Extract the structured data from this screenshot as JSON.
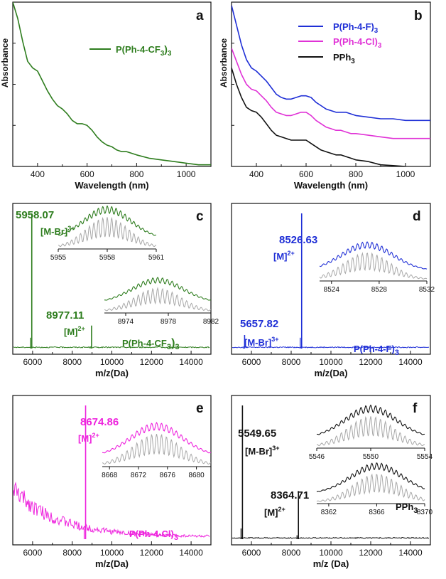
{
  "chart_data": [
    {
      "panel": "a",
      "type": "line",
      "xlabel": "Wavelength (nm)",
      "ylabel": "Absorbance",
      "xlim": [
        300,
        1100
      ],
      "xticks": [
        400,
        600,
        800,
        1000
      ],
      "ylim": [
        0,
        1.0
      ],
      "legend_position": "top-right",
      "series": [
        {
          "name": "P(Ph-4-CF3)3",
          "legend_parts": [
            "P(Ph-4-CF",
            "3",
            ")",
            "3"
          ],
          "color": "#2e7d1e",
          "x": [
            300,
            320,
            340,
            360,
            380,
            400,
            420,
            440,
            460,
            480,
            500,
            520,
            540,
            560,
            580,
            600,
            620,
            640,
            660,
            680,
            700,
            720,
            740,
            760,
            780,
            800,
            850,
            900,
            950,
            1000,
            1050,
            1100
          ],
          "y": [
            1.0,
            0.9,
            0.76,
            0.64,
            0.6,
            0.58,
            0.52,
            0.46,
            0.41,
            0.37,
            0.35,
            0.32,
            0.28,
            0.26,
            0.26,
            0.25,
            0.22,
            0.18,
            0.15,
            0.13,
            0.12,
            0.1,
            0.09,
            0.09,
            0.08,
            0.07,
            0.05,
            0.04,
            0.03,
            0.02,
            0.01,
            0.01
          ]
        }
      ]
    },
    {
      "panel": "b",
      "type": "line",
      "xlabel": "Wavelength (nm)",
      "ylabel": "Absorbance",
      "xlim": [
        300,
        1100
      ],
      "xticks": [
        400,
        600,
        800,
        1000
      ],
      "ylim": [
        0,
        1.0
      ],
      "legend_position": "top-right",
      "series": [
        {
          "name": "P(Ph-4-F)3",
          "legend_parts": [
            "P(Ph-4-F)",
            "3",
            "",
            ""
          ],
          "color": "#1f2fd6",
          "x": [
            300,
            320,
            340,
            360,
            380,
            400,
            420,
            440,
            460,
            480,
            500,
            520,
            540,
            560,
            580,
            600,
            620,
            640,
            660,
            680,
            700,
            720,
            740,
            760,
            780,
            800,
            850,
            900,
            950,
            1000,
            1050,
            1100
          ],
          "y": [
            0.98,
            0.86,
            0.74,
            0.65,
            0.6,
            0.58,
            0.55,
            0.52,
            0.48,
            0.44,
            0.42,
            0.41,
            0.41,
            0.42,
            0.43,
            0.43,
            0.42,
            0.39,
            0.37,
            0.35,
            0.34,
            0.33,
            0.33,
            0.33,
            0.32,
            0.31,
            0.3,
            0.29,
            0.29,
            0.28,
            0.28,
            0.28
          ]
        },
        {
          "name": "P(Ph-4-Cl)3",
          "legend_parts": [
            "P(Ph-4-Cl)",
            "3",
            "",
            ""
          ],
          "color": "#e032d6",
          "x": [
            300,
            320,
            340,
            360,
            380,
            400,
            420,
            440,
            460,
            480,
            500,
            520,
            540,
            560,
            580,
            600,
            620,
            640,
            660,
            680,
            700,
            720,
            740,
            760,
            780,
            800,
            850,
            900,
            950,
            1000,
            1050,
            1100
          ],
          "y": [
            0.72,
            0.64,
            0.56,
            0.5,
            0.47,
            0.46,
            0.43,
            0.4,
            0.36,
            0.33,
            0.32,
            0.31,
            0.31,
            0.32,
            0.33,
            0.33,
            0.31,
            0.28,
            0.26,
            0.24,
            0.23,
            0.22,
            0.22,
            0.21,
            0.2,
            0.2,
            0.19,
            0.18,
            0.17,
            0.17,
            0.17,
            0.17
          ]
        },
        {
          "name": "PPh3",
          "legend_parts": [
            "PPh",
            "3",
            "",
            ""
          ],
          "color": "#111111",
          "x": [
            300,
            320,
            340,
            360,
            380,
            400,
            420,
            440,
            460,
            480,
            500,
            520,
            540,
            560,
            580,
            600,
            620,
            640,
            660,
            680,
            700,
            720,
            740,
            760,
            780,
            800,
            850,
            900,
            950,
            1000
          ],
          "y": [
            0.6,
            0.5,
            0.42,
            0.36,
            0.34,
            0.33,
            0.3,
            0.26,
            0.22,
            0.19,
            0.18,
            0.17,
            0.16,
            0.16,
            0.16,
            0.16,
            0.14,
            0.12,
            0.1,
            0.09,
            0.08,
            0.07,
            0.07,
            0.06,
            0.05,
            0.04,
            0.03,
            0.01,
            0.005,
            0.0
          ]
        }
      ]
    },
    {
      "panel": "c",
      "type": "line",
      "xlabel": "m/z(Da)",
      "xlim": [
        5000,
        15000
      ],
      "xticks": [
        6000,
        8000,
        10000,
        12000,
        14000
      ],
      "color": "#2e7d1e",
      "compound_parts": [
        "P(Ph-4-CF",
        "3",
        ")",
        "3"
      ],
      "peaks": [
        {
          "mz": 5958.07,
          "rel": 1.0,
          "label": "5958.07",
          "ion_base": "[M-Br]",
          "charge": "3+"
        },
        {
          "mz": 8977.11,
          "rel": 0.17,
          "label": "8977.11",
          "ion_base": "[M]",
          "charge": "2+"
        }
      ],
      "insets": [
        {
          "center": 5958,
          "xlim": [
            5955,
            5961
          ],
          "ticks": [
            5955,
            5958,
            5961
          ],
          "position": "top"
        },
        {
          "center": 8977,
          "xlim": [
            8972,
            8982
          ],
          "ticks": [
            8974,
            8978,
            8982
          ],
          "position": "bottom"
        }
      ]
    },
    {
      "panel": "d",
      "type": "line",
      "xlabel": "m/z(Da)",
      "xlim": [
        5000,
        15000
      ],
      "xticks": [
        6000,
        8000,
        10000,
        12000,
        14000
      ],
      "color": "#1f2fd6",
      "compound_parts": [
        "P(Ph-4-F)",
        "3",
        "",
        ""
      ],
      "peaks": [
        {
          "mz": 8526.63,
          "rel": 1.0,
          "label": "8526.63",
          "ion_base": "[M]",
          "charge": "2+"
        },
        {
          "mz": 5657.82,
          "rel": 0.1,
          "label": "5657.82",
          "ion_base": "[M-Br]",
          "charge": "3+"
        }
      ],
      "insets": [
        {
          "center": 8527,
          "xlim": [
            8523,
            8532
          ],
          "ticks": [
            8524,
            8528,
            8532
          ],
          "position": "right"
        }
      ]
    },
    {
      "panel": "e",
      "type": "line",
      "xlabel": "m/z(Da)",
      "xlim": [
        5000,
        15000
      ],
      "xticks": [
        6000,
        8000,
        10000,
        12000,
        14000
      ],
      "color": "#ee22dd",
      "compound_parts": [
        "P(Ph-4-Cl)",
        "3",
        "",
        ""
      ],
      "peaks": [
        {
          "mz": 8674.86,
          "rel": 1.0,
          "label": "8674.86",
          "ion_base": "[M]",
          "charge": "2+"
        }
      ],
      "insets": [
        {
          "center": 8674.5,
          "xlim": [
            8667,
            8682
          ],
          "ticks": [
            8668,
            8672,
            8676,
            8680
          ],
          "position": "right"
        }
      ]
    },
    {
      "panel": "f",
      "type": "line",
      "xlabel": "m/z (Da)",
      "xlim": [
        5000,
        15000
      ],
      "xticks": [
        6000,
        8000,
        10000,
        12000,
        14000
      ],
      "color": "#111111",
      "compound_parts": [
        "PPh",
        "3",
        "",
        ""
      ],
      "peaks": [
        {
          "mz": 5549.65,
          "rel": 1.0,
          "label": "5549.65",
          "ion_base": "[M-Br]",
          "charge": "3+"
        },
        {
          "mz": 8364.71,
          "rel": 0.36,
          "label": "8364.71",
          "ion_base": "[M]",
          "charge": "2+"
        }
      ],
      "insets": [
        {
          "center": 5550,
          "xlim": [
            5546,
            5554
          ],
          "ticks": [
            5546,
            5550,
            5554
          ],
          "position": "top"
        },
        {
          "center": 8366,
          "xlim": [
            8361,
            8370
          ],
          "ticks": [
            8362,
            8366,
            8370
          ],
          "position": "bottom"
        }
      ]
    }
  ]
}
